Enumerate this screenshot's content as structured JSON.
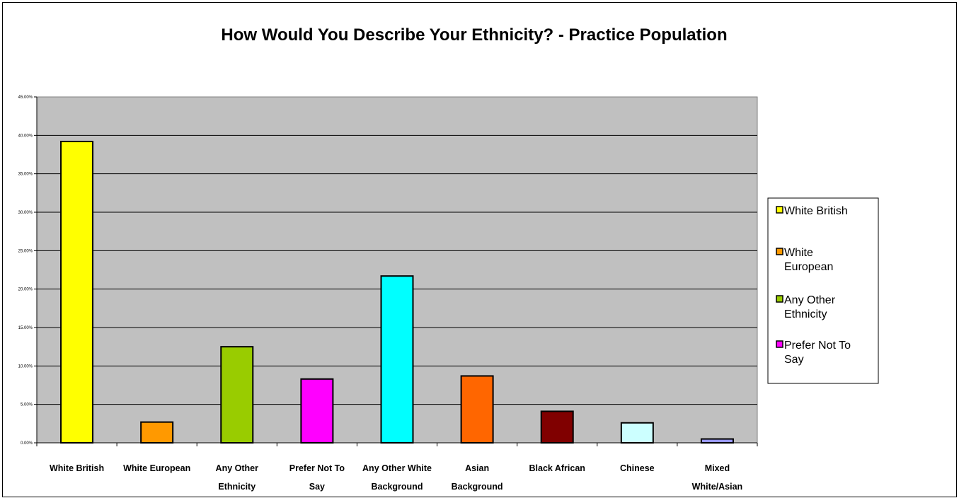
{
  "chart_data": {
    "type": "bar",
    "title": "How Would You Describe Your Ethnicity? - Practice Population",
    "xlabel": "",
    "ylabel": "",
    "ylim": [
      0,
      45
    ],
    "y_tick_step": 5,
    "y_tick_format": "percent_2dp",
    "grid": true,
    "plot_background": "#C0C0C0",
    "legend_position": "right",
    "categories": [
      "White British",
      "White European",
      "Any Other Ethnicity",
      "Prefer Not To Say",
      "Any Other White Background",
      "Asian Background",
      "Black African",
      "Chinese",
      "Mixed White/Asian"
    ],
    "category_label_lines": [
      [
        "White British"
      ],
      [
        "White European"
      ],
      [
        "Any Other",
        "Ethnicity"
      ],
      [
        "Prefer Not To",
        "Say"
      ],
      [
        "Any Other White",
        "Background"
      ],
      [
        "Asian",
        "Background"
      ],
      [
        "Black African"
      ],
      [
        "Chinese"
      ],
      [
        "Mixed",
        "White/Asian"
      ]
    ],
    "values": [
      39.2,
      2.7,
      12.5,
      8.3,
      21.7,
      8.7,
      4.1,
      2.6,
      0.5
    ],
    "colors": [
      "#FFFF00",
      "#FF9900",
      "#99CC00",
      "#FF00FF",
      "#00FFFF",
      "#FF6600",
      "#800000",
      "#CCFFFF",
      "#9999FF"
    ],
    "legend_visible_entries": [
      [
        "White British"
      ],
      [
        "White",
        "European"
      ],
      [
        "Any Other",
        "Ethnicity"
      ],
      [
        "Prefer Not To",
        "Say"
      ]
    ]
  }
}
